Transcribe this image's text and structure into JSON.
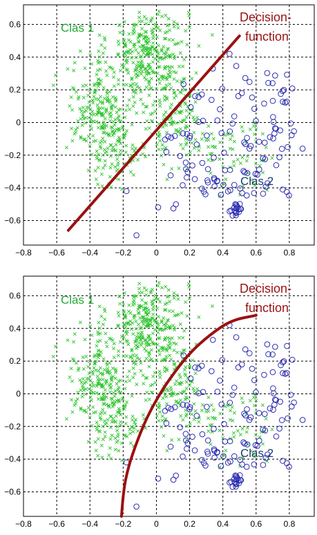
{
  "colors": {
    "class1": "#2fc42f",
    "class2": "#2b2bb0",
    "decision": "#9b1111",
    "class1_label": "#22aa33",
    "class2_label": "#1b3f6e",
    "grid": "#000000"
  },
  "chart_data": [
    {
      "type": "scatter",
      "xlim": [
        -0.8,
        0.95
      ],
      "ylim": [
        -0.75,
        0.72
      ],
      "xticks": [
        "−0.8",
        "−0.6",
        "−0.4",
        "−0.2",
        "0",
        "0.2",
        "0.4",
        "0.6",
        "0.8"
      ],
      "yticks": [
        "0.6",
        "0.4",
        "0.2",
        "0",
        "−0.2",
        "−0.4",
        "−0.6"
      ],
      "grid": "on",
      "annotations": {
        "class1": "Clas 1",
        "class2": "Clas 2",
        "decision_line1": "Decision-",
        "decision_line2": "function"
      },
      "decision_function": {
        "shape": "line",
        "points": [
          [
            -0.53,
            -0.66
          ],
          [
            0.5,
            0.53
          ]
        ]
      }
    },
    {
      "type": "scatter",
      "xlim": [
        -0.8,
        0.95
      ],
      "ylim": [
        -0.75,
        0.72
      ],
      "xticks": [
        "−0.8",
        "−0.6",
        "−0.4",
        "−0.2",
        "0",
        "0.2",
        "0.4",
        "0.6",
        "0.8"
      ],
      "yticks": [
        "0.6",
        "0.4",
        "0.2",
        "0",
        "−0.2",
        "−0.4",
        "−0.6"
      ],
      "grid": "on",
      "annotations": {
        "class1": "Clas 1",
        "class2": "Clas 2",
        "decision_line1": "Decision-",
        "decision_line2": "function"
      },
      "decision_function": {
        "shape": "curve",
        "points": [
          [
            -0.21,
            -0.75
          ],
          [
            -0.2,
            -0.6
          ],
          [
            -0.17,
            -0.45
          ],
          [
            -0.12,
            -0.3
          ],
          [
            -0.06,
            -0.15
          ],
          [
            0.02,
            0.0
          ],
          [
            0.1,
            0.12
          ],
          [
            0.2,
            0.25
          ],
          [
            0.32,
            0.36
          ],
          [
            0.45,
            0.45
          ],
          [
            0.6,
            0.48
          ]
        ]
      }
    }
  ]
}
